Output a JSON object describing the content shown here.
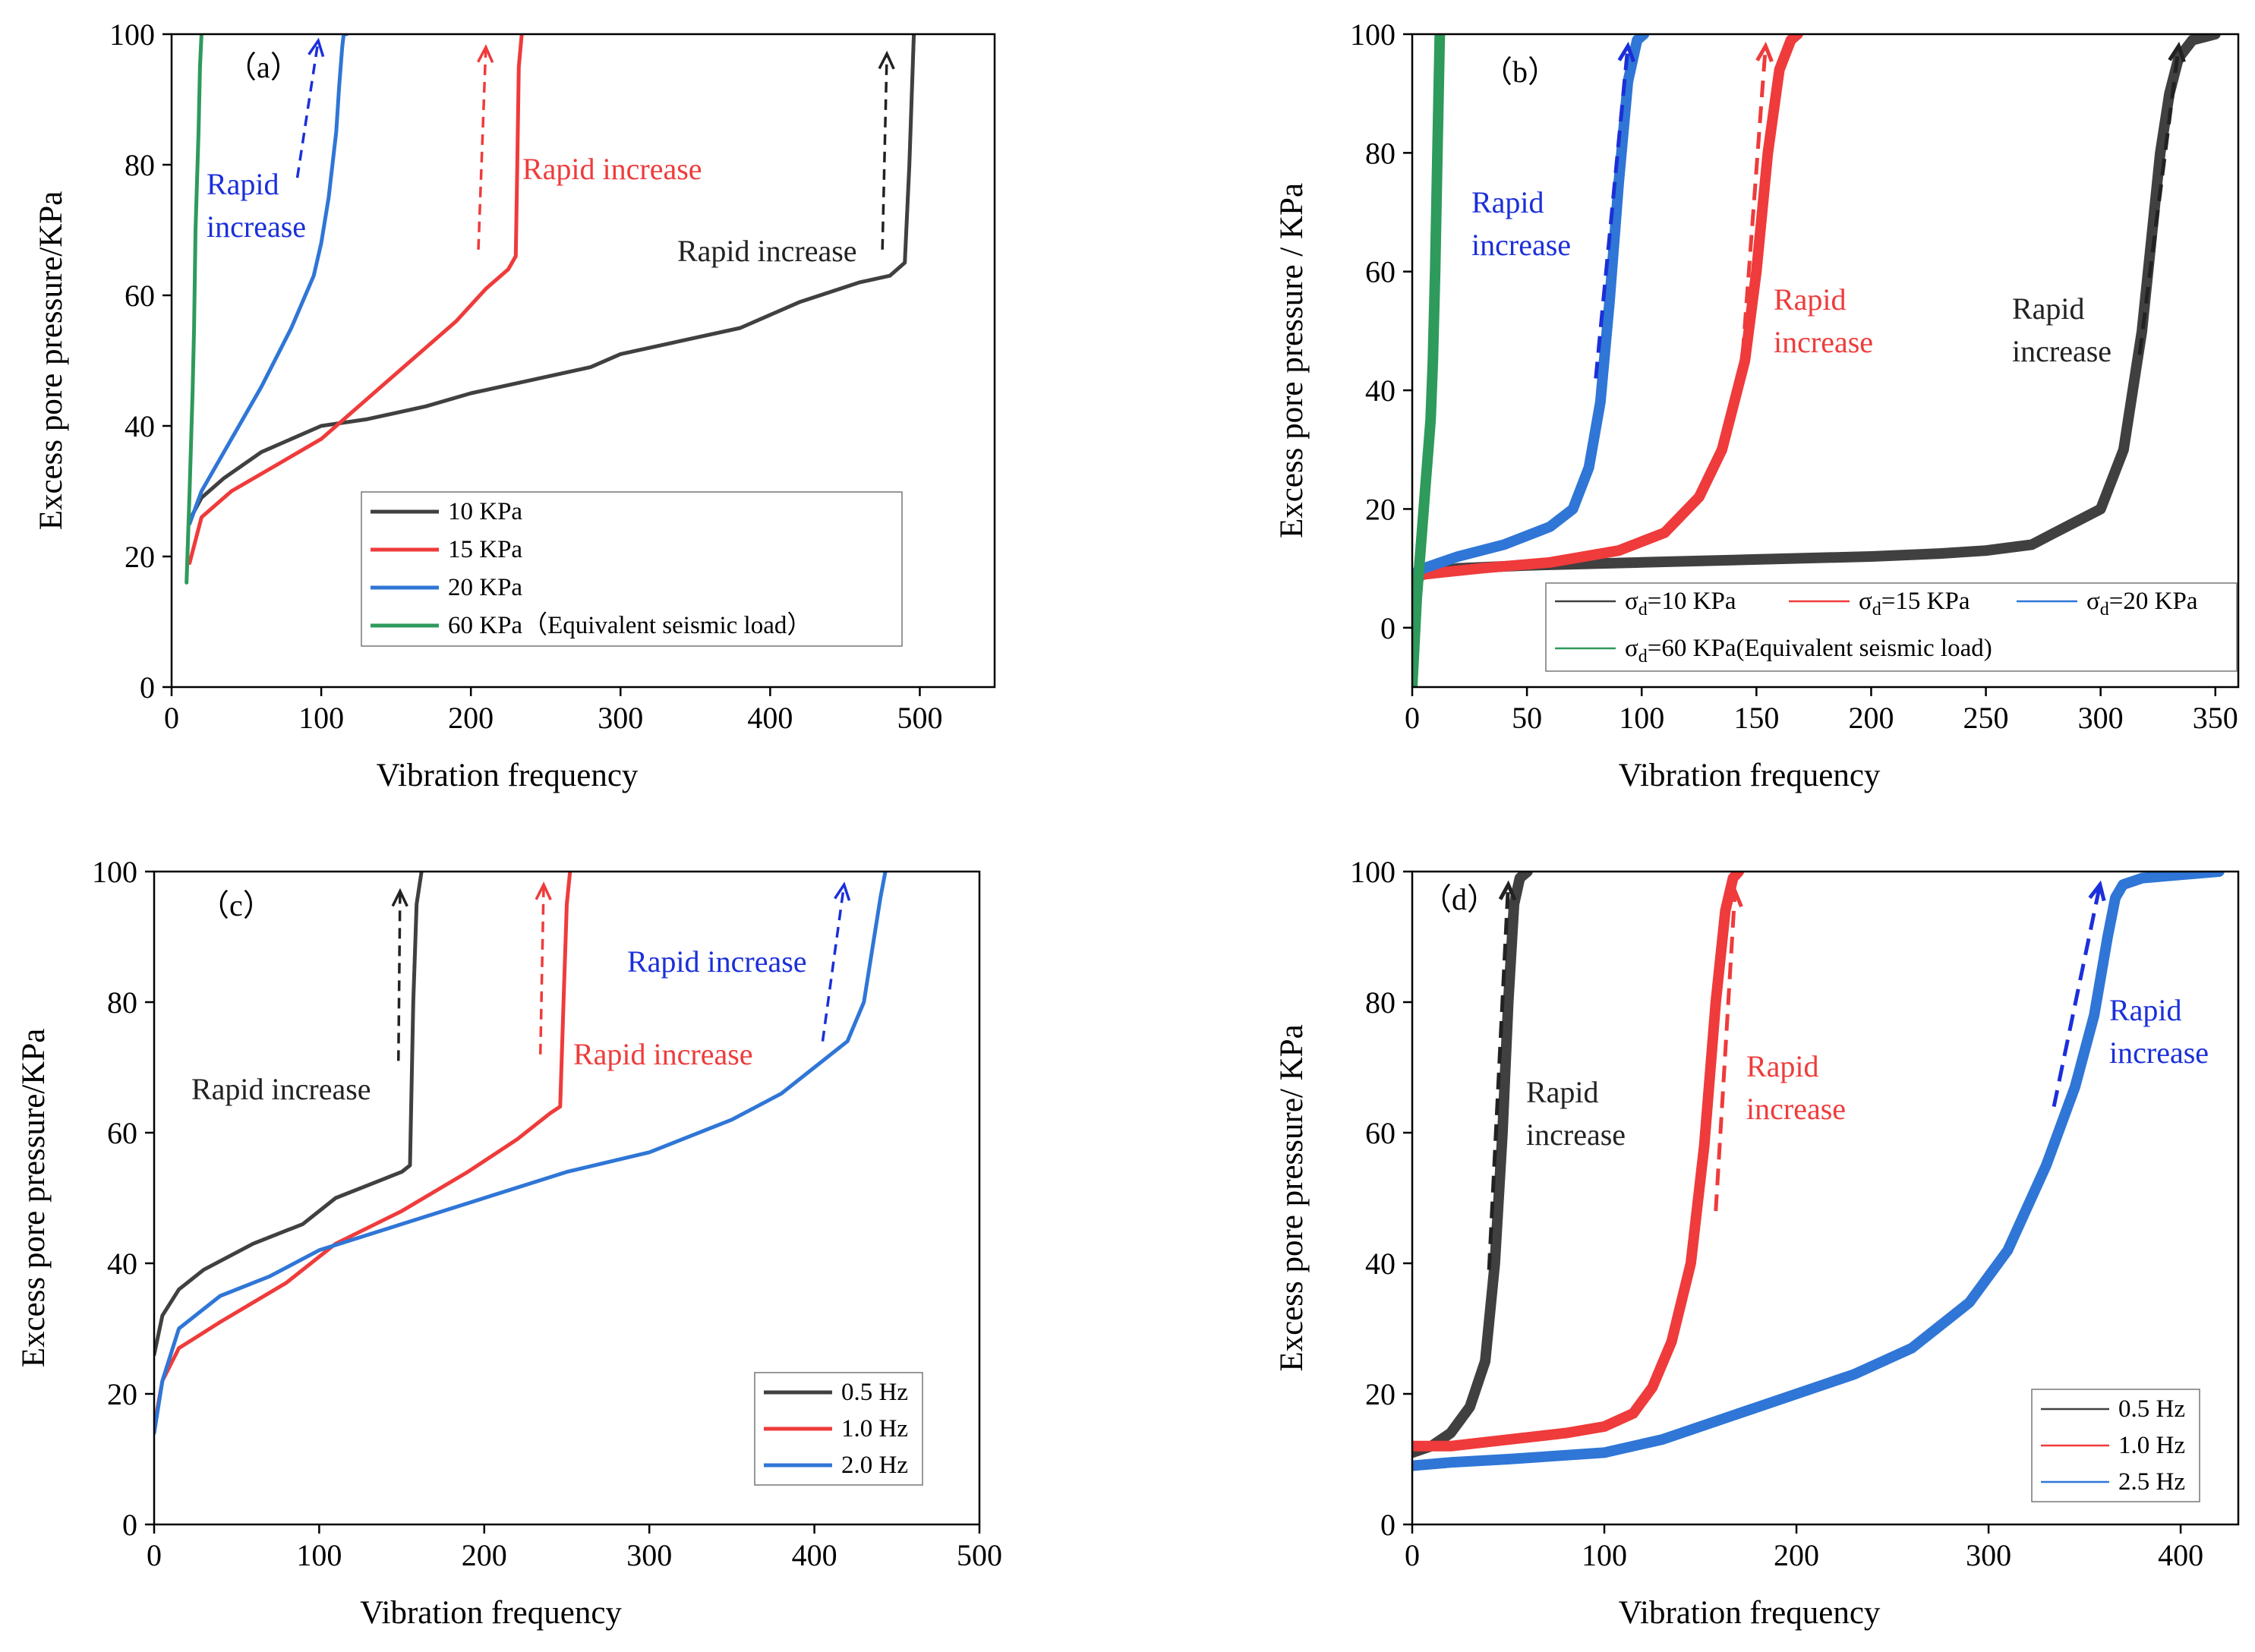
{
  "chart_data": [
    {
      "type": "line",
      "panel_label": "（a）",
      "xlabel": "Vibration frequency",
      "ylabel": "Excess pore pressure/KPa",
      "xlim": [
        0,
        550
      ],
      "ylim": [
        0,
        100
      ],
      "xticks": [
        0,
        100,
        200,
        300,
        400,
        500
      ],
      "yticks": [
        0,
        20,
        40,
        60,
        80,
        100
      ],
      "legend_placement": "bottom-right",
      "series": [
        {
          "name": "10 KPa",
          "color": "#404040",
          "x": [
            13,
            20,
            35,
            60,
            80,
            100,
            130,
            170,
            200,
            240,
            280,
            300,
            340,
            380,
            420,
            460,
            480,
            490,
            493,
            496
          ],
          "y": [
            26,
            29,
            32,
            36,
            38,
            40,
            41,
            43,
            45,
            47,
            49,
            51,
            53,
            55,
            59,
            62,
            63,
            65,
            80,
            100
          ]
        },
        {
          "name": "15 KPa",
          "color": "#ef3b3b",
          "x": [
            12,
            20,
            40,
            70,
            100,
            130,
            160,
            190,
            210,
            225,
            230,
            231,
            232,
            234
          ],
          "y": [
            19,
            26,
            30,
            34,
            38,
            44,
            50,
            56,
            61,
            64,
            66,
            80,
            95,
            100
          ]
        },
        {
          "name": "20 KPa",
          "color": "#2f76d6",
          "x": [
            12,
            20,
            40,
            60,
            80,
            95,
            100,
            105,
            110,
            112,
            114,
            115,
            117
          ],
          "y": [
            25,
            30,
            38,
            46,
            55,
            63,
            68,
            75,
            85,
            92,
            98,
            100,
            100
          ]
        },
        {
          "name": "60 KPa（Equivalent seismic load）",
          "color": "#2e9a5c",
          "x": [
            10,
            12,
            14,
            15,
            16,
            18,
            19,
            20
          ],
          "y": [
            16,
            30,
            45,
            55,
            70,
            85,
            95,
            100
          ]
        }
      ],
      "annotations": [
        {
          "text_lines": [
            "Rapid",
            "increase"
          ],
          "color": "#1b2fd9",
          "anchor": [
            22,
            71
          ]
        },
        {
          "text_lines": [
            "Rapid increase"
          ],
          "color": "#ef3b3b",
          "anchor": [
            232,
            80
          ]
        },
        {
          "text_lines": [
            "Rapid increase"
          ],
          "color": "#222222",
          "anchor": [
            337,
            66
          ]
        }
      ]
    },
    {
      "type": "line",
      "panel_label": "（b）",
      "xlabel": "Vibration frequency",
      "ylabel": "Excess pore pressure / KPa",
      "xlim": [
        0,
        360
      ],
      "ylim": [
        -10,
        100
      ],
      "xticks": [
        0,
        50,
        100,
        150,
        200,
        250,
        300,
        350
      ],
      "yticks": [
        0,
        20,
        40,
        60,
        80,
        100
      ],
      "legend_placement": "bottom-right",
      "series": [
        {
          "name": "σd=10 KPa",
          "color": "#404040",
          "x": [
            0,
            5,
            20,
            50,
            100,
            150,
            200,
            230,
            250,
            270,
            280,
            290,
            300,
            310,
            318,
            322,
            326,
            330,
            334,
            340,
            350
          ],
          "y": [
            8,
            9,
            10,
            10.5,
            11,
            11.5,
            12,
            12.5,
            13,
            14,
            16,
            18,
            20,
            30,
            50,
            65,
            80,
            90,
            96,
            99,
            100
          ]
        },
        {
          "name": "σd=15 KPa",
          "color": "#ef3b3b",
          "x": [
            0,
            5,
            30,
            60,
            90,
            110,
            125,
            135,
            145,
            150,
            155,
            160,
            165,
            168
          ],
          "y": [
            8,
            9,
            10,
            11,
            13,
            16,
            22,
            30,
            45,
            60,
            80,
            94,
            99,
            100
          ]
        },
        {
          "name": "σd=20 KPa",
          "color": "#2f76d6",
          "x": [
            0,
            5,
            20,
            40,
            60,
            70,
            77,
            82,
            86,
            90,
            94,
            98,
            101
          ],
          "y": [
            9,
            10,
            12,
            14,
            17,
            20,
            27,
            38,
            55,
            75,
            92,
            99,
            100
          ]
        },
        {
          "name": "σd=60 KPa(Equivalent seismic load)",
          "color": "#2e9a5c",
          "x": [
            0,
            2,
            4,
            6,
            8,
            9,
            10,
            11,
            12
          ],
          "y": [
            -10,
            5,
            15,
            25,
            35,
            45,
            60,
            80,
            100
          ]
        }
      ],
      "annotations": [
        {
          "text_lines": [
            "Rapid",
            "increase"
          ],
          "color": "#1b2fd9",
          "anchor": [
            26,
            67
          ]
        },
        {
          "text_lines": [
            "Rapid",
            "increase"
          ],
          "color": "#ef3b3b",
          "anchor": [
            158,
            52
          ]
        },
        {
          "text_lines": [
            "Rapid",
            "increase"
          ],
          "color": "#222222",
          "anchor": [
            263,
            50
          ]
        }
      ]
    },
    {
      "type": "line",
      "panel_label": "（c）",
      "xlabel": "Vibration frequency",
      "ylabel": "Excess pore pressure/KPa",
      "xlim": [
        0,
        500
      ],
      "ylim": [
        0,
        100
      ],
      "xticks": [
        0,
        100,
        200,
        300,
        400,
        500
      ],
      "yticks": [
        0,
        20,
        40,
        60,
        80,
        100
      ],
      "legend_placement": "bottom-right",
      "series": [
        {
          "name": "0.5 Hz",
          "color": "#404040",
          "x": [
            0,
            5,
            15,
            30,
            60,
            90,
            110,
            130,
            150,
            155,
            157,
            159,
            162
          ],
          "y": [
            26,
            32,
            36,
            39,
            43,
            46,
            50,
            52,
            54,
            55,
            80,
            95,
            100
          ]
        },
        {
          "name": "1.0 Hz",
          "color": "#ef3b3b",
          "x": [
            0,
            5,
            15,
            40,
            80,
            110,
            150,
            190,
            220,
            240,
            246,
            248,
            250,
            252
          ],
          "y": [
            15,
            22,
            27,
            31,
            37,
            43,
            48,
            54,
            59,
            63,
            64,
            80,
            95,
            100
          ]
        },
        {
          "name": "2.0 Hz",
          "color": "#2f76d6",
          "x": [
            0,
            5,
            15,
            40,
            70,
            100,
            150,
            200,
            250,
            300,
            350,
            380,
            400,
            420,
            430,
            435,
            440,
            443
          ],
          "y": [
            14,
            22,
            30,
            35,
            38,
            42,
            46,
            50,
            54,
            57,
            62,
            66,
            70,
            74,
            80,
            88,
            96,
            100
          ]
        }
      ],
      "annotations": [
        {
          "text_lines": [
            "Rapid increase"
          ],
          "color": "#222222",
          "anchor": [
            82,
            65
          ]
        },
        {
          "text_lines": [
            "Rapid increase"
          ],
          "color": "#ef3b3b",
          "anchor": [
            314,
            71
          ]
        },
        {
          "text_lines": [
            "Rapid increase"
          ],
          "color": "#1b2fd9",
          "anchor": [
            348,
            85
          ]
        }
      ]
    },
    {
      "type": "line",
      "panel_label": "（d）",
      "xlabel": "Vibration frequency",
      "ylabel": "Excess pore pressure/ KPa",
      "xlim": [
        0,
        430
      ],
      "ylim": [
        0,
        100
      ],
      "xticks": [
        0,
        100,
        200,
        300,
        400
      ],
      "yticks": [
        0,
        20,
        40,
        60,
        80,
        100
      ],
      "legend_placement": "bottom-right",
      "series": [
        {
          "name": "0.5 Hz",
          "color": "#404040",
          "x": [
            0,
            10,
            20,
            30,
            38,
            43,
            47,
            50,
            53,
            56,
            60
          ],
          "y": [
            11,
            12,
            14,
            18,
            25,
            40,
            60,
            80,
            95,
            99,
            100
          ]
        },
        {
          "name": "1.0 Hz",
          "color": "#ef3b3b",
          "x": [
            0,
            20,
            50,
            80,
            100,
            115,
            125,
            135,
            145,
            152,
            158,
            163,
            167,
            170
          ],
          "y": [
            12,
            12,
            13,
            14,
            15,
            17,
            21,
            28,
            40,
            58,
            80,
            94,
            99,
            100
          ]
        },
        {
          "name": "2.5 Hz",
          "color": "#2f76d6",
          "x": [
            0,
            20,
            50,
            100,
            130,
            180,
            230,
            260,
            290,
            310,
            330,
            345,
            355,
            362,
            366,
            370,
            380,
            400,
            420
          ],
          "y": [
            9,
            9.5,
            10,
            11,
            13,
            18,
            23,
            27,
            34,
            42,
            55,
            67,
            78,
            90,
            96,
            98,
            99,
            99.5,
            100
          ]
        }
      ],
      "annotations": [
        {
          "text_lines": [
            "Rapid",
            "increase"
          ],
          "color": "#222222",
          "anchor": [
            60,
            61
          ]
        },
        {
          "text_lines": [
            "Rapid",
            "increase"
          ],
          "color": "#ef3b3b",
          "anchor": [
            175,
            67
          ]
        },
        {
          "text_lines": [
            "Rapid",
            "increase"
          ],
          "color": "#1b2fd9",
          "anchor": [
            362,
            78
          ]
        }
      ]
    }
  ]
}
